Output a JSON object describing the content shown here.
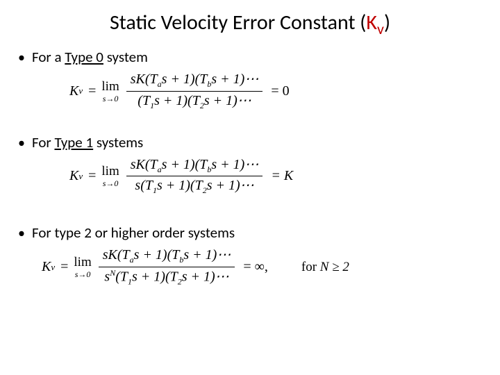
{
  "title": {
    "main": "Static Velocity Error Constant (",
    "k": "K",
    "sub": "v",
    "close": ")"
  },
  "bullets": {
    "b1_pre": "For a ",
    "b1_u": "Type 0",
    "b1_post": " system",
    "b2_pre": "For ",
    "b2_u": "Type 1",
    "b2_post": " systems",
    "b3": "For type 2 or higher order systems"
  },
  "eq": {
    "kv": "K",
    "kv_sub": "v",
    "equals": "=",
    "lim": "lim",
    "lim_sub": "s→0",
    "num": "sK(T",
    "num_a": "a",
    "num_mid1": "s + 1)(T",
    "num_b": "b",
    "num_end": "s + 1)⋯",
    "den0_pre": "(T",
    "den0_1": "1",
    "den0_mid": "s + 1)(T",
    "den0_2": "2",
    "den0_end": "s + 1)⋯",
    "den1_pre": "s(T",
    "denN_pre_s": "s",
    "denN_exp": "N",
    "denN_pre_open": "(T",
    "rhs0": " = 0",
    "rhs1": " =   K",
    "rhsInf": " = ∞,",
    "for_label": "for ",
    "for_cond": "N ≥ 2"
  }
}
